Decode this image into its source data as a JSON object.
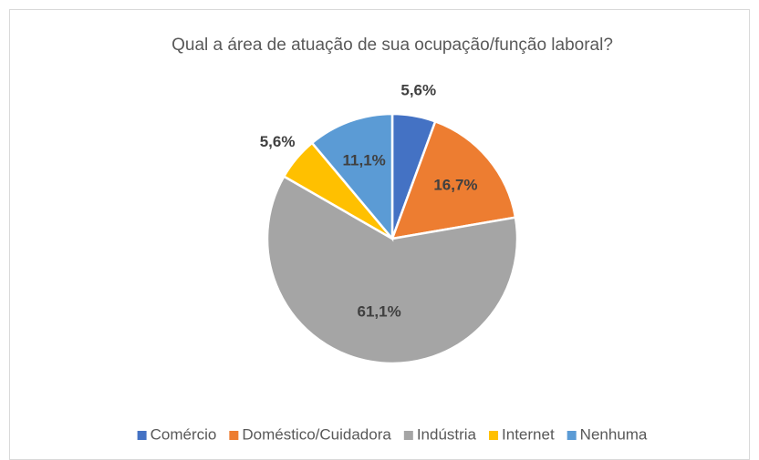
{
  "chart_data": {
    "type": "pie",
    "title": "Qual a área de atuação de sua ocupação/função laboral?",
    "categories": [
      "Comércio",
      "Doméstico/Cuidadora",
      "Indústria",
      "Internet",
      "Nenhuma"
    ],
    "values": [
      5.6,
      16.7,
      61.1,
      5.6,
      11.1
    ],
    "value_labels": [
      "5,6%",
      "16,7%",
      "61,1%",
      "5,6%",
      "11,1%"
    ],
    "colors": [
      "#4472c4",
      "#ed7d31",
      "#a5a5a5",
      "#ffc000",
      "#5b9bd5"
    ],
    "legend": "bottom"
  }
}
